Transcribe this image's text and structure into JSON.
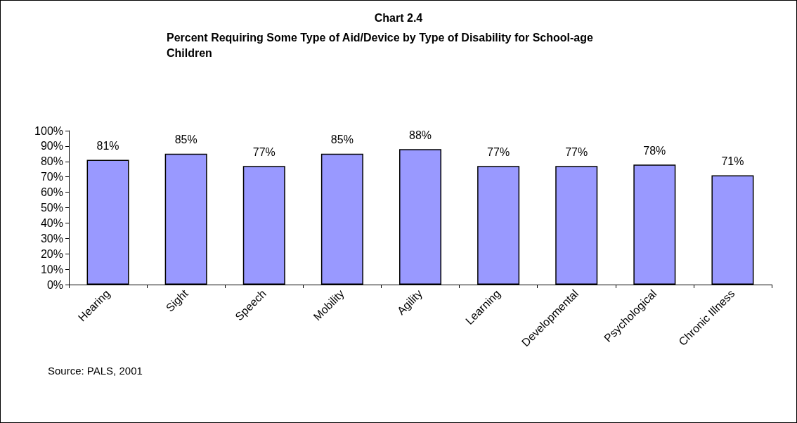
{
  "chart_data": {
    "type": "bar",
    "title": "Chart 2.4",
    "subtitle": "Percent Requiring Some Type of Aid/Device by Type of Disability for School-age Children",
    "categories": [
      "Hearing",
      "Sight",
      "Speech",
      "Mobility",
      "Agility",
      "Learning",
      "Developmental",
      "Psychological",
      "Chronic Illness"
    ],
    "values": [
      81,
      85,
      77,
      85,
      88,
      77,
      77,
      78,
      71
    ],
    "value_labels": [
      "81%",
      "85%",
      "77%",
      "85%",
      "88%",
      "77%",
      "77%",
      "78%",
      "71%"
    ],
    "color": "#9999ff",
    "ylim": [
      0,
      100
    ],
    "yticks": [
      {
        "value": 0,
        "label": "0%"
      },
      {
        "value": 10,
        "label": "10%"
      },
      {
        "value": 20,
        "label": "20%"
      },
      {
        "value": 30,
        "label": "30%"
      },
      {
        "value": 40,
        "label": "40%"
      },
      {
        "value": 50,
        "label": "50%"
      },
      {
        "value": 60,
        "label": "60%"
      },
      {
        "value": 70,
        "label": "70%"
      },
      {
        "value": 80,
        "label": "80%"
      },
      {
        "value": 90,
        "label": "90%"
      },
      {
        "value": 100,
        "label": "100%"
      }
    ],
    "grid": false,
    "annotations": [
      "Source: PALS, 2001"
    ]
  }
}
